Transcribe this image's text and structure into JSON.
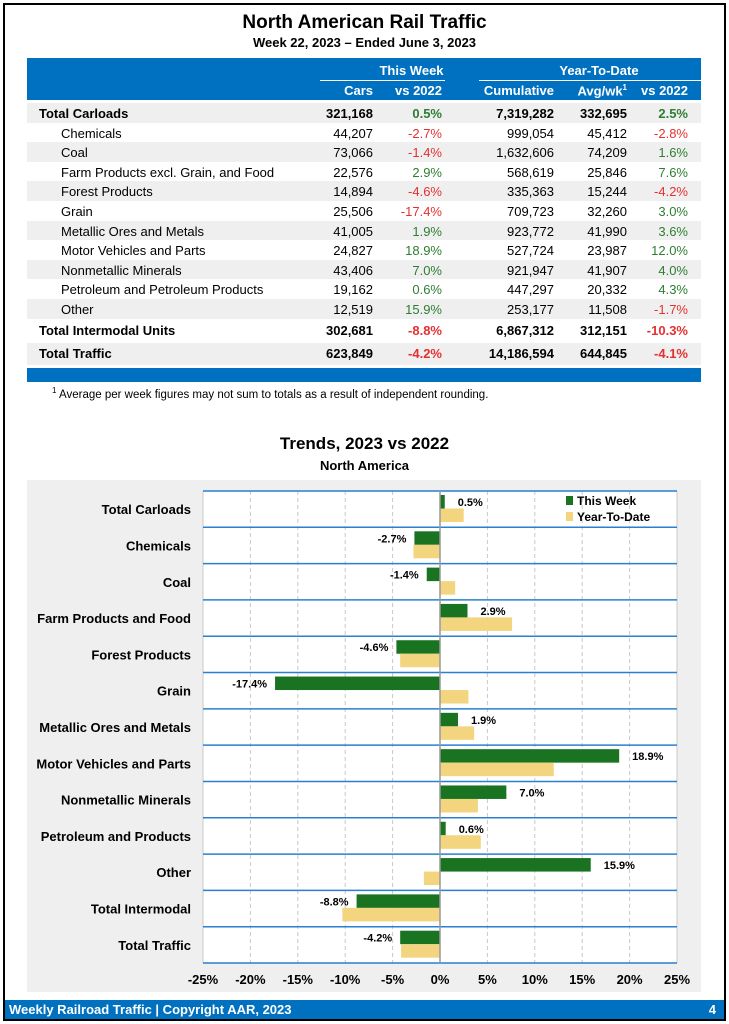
{
  "title": "North American Rail Traffic",
  "subtitle": "Week 22, 2023 – Ended June 3, 2023",
  "table": {
    "group_this_week": "This Week",
    "group_ytd": "Year-To-Date",
    "columns": [
      "Cars",
      "vs 2022",
      "Cumulative",
      "Avg/wk",
      "vs 2022"
    ],
    "avg_sup": "1",
    "rows": [
      {
        "label": "Total Carloads",
        "bold": true,
        "cars": "321,168",
        "vs": "0.5%",
        "cum": "7,319,282",
        "avg": "332,695",
        "ytd": "2.5%"
      },
      {
        "label": "Chemicals",
        "cars": "44,207",
        "vs": "-2.7%",
        "cum": "999,054",
        "avg": "45,412",
        "ytd": "-2.8%"
      },
      {
        "label": "Coal",
        "cars": "73,066",
        "vs": "-1.4%",
        "cum": "1,632,606",
        "avg": "74,209",
        "ytd": "1.6%"
      },
      {
        "label": "Farm Products excl. Grain, and Food",
        "cars": "22,576",
        "vs": "2.9%",
        "cum": "568,619",
        "avg": "25,846",
        "ytd": "7.6%"
      },
      {
        "label": "Forest Products",
        "cars": "14,894",
        "vs": "-4.6%",
        "cum": "335,363",
        "avg": "15,244",
        "ytd": "-4.2%"
      },
      {
        "label": "Grain",
        "cars": "25,506",
        "vs": "-17.4%",
        "cum": "709,723",
        "avg": "32,260",
        "ytd": "3.0%"
      },
      {
        "label": "Metallic Ores and Metals",
        "cars": "41,005",
        "vs": "1.9%",
        "cum": "923,772",
        "avg": "41,990",
        "ytd": "3.6%"
      },
      {
        "label": "Motor Vehicles and Parts",
        "cars": "24,827",
        "vs": "18.9%",
        "cum": "527,724",
        "avg": "23,987",
        "ytd": "12.0%"
      },
      {
        "label": "Nonmetallic Minerals",
        "cars": "43,406",
        "vs": "7.0%",
        "cum": "921,947",
        "avg": "41,907",
        "ytd": "4.0%"
      },
      {
        "label": "Petroleum and Petroleum Products",
        "cars": "19,162",
        "vs": "0.6%",
        "cum": "447,297",
        "avg": "20,332",
        "ytd": "4.3%"
      },
      {
        "label": "Other",
        "cars": "12,519",
        "vs": "15.9%",
        "cum": "253,177",
        "avg": "11,508",
        "ytd": "-1.7%"
      },
      {
        "label": "Total Intermodal Units",
        "bold": true,
        "cars": "302,681",
        "vs": "-8.8%",
        "cum": "6,867,312",
        "avg": "312,151",
        "ytd": "-10.3%"
      },
      {
        "label": "Total Traffic",
        "bold": true,
        "cars": "623,849",
        "vs": "-4.2%",
        "cum": "14,186,594",
        "avg": "644,845",
        "ytd": "-4.1%"
      }
    ]
  },
  "footnote": {
    "mark": "1",
    "text": "Average per week figures may not sum to totals as a result of independent rounding."
  },
  "chart_data": {
    "type": "bar",
    "orientation": "horizontal",
    "title": "Trends, 2023 vs 2022",
    "subtitle": "North America",
    "categories": [
      "Total Carloads",
      "Chemicals",
      "Coal",
      "Farm Products and Food",
      "Forest Products",
      "Grain",
      "Metallic Ores and Metals",
      "Motor Vehicles and Parts",
      "Nonmetallic Minerals",
      "Petroleum and Products",
      "Other",
      "Total Intermodal",
      "Total Traffic"
    ],
    "series": [
      {
        "name": "This Week",
        "color": "#1a7320",
        "values": [
          0.5,
          -2.7,
          -1.4,
          2.9,
          -4.6,
          -17.4,
          1.9,
          18.9,
          7.0,
          0.6,
          15.9,
          -8.8,
          -4.2
        ],
        "labels": [
          "0.5%",
          "-2.7%",
          "-1.4%",
          "2.9%",
          "-4.6%",
          "-17.4%",
          "1.9%",
          "18.9%",
          "7.0%",
          "0.6%",
          "15.9%",
          "-8.8%",
          "-4.2%"
        ]
      },
      {
        "name": "Year-To-Date",
        "color": "#f2d57e",
        "values": [
          2.5,
          -2.8,
          1.6,
          7.6,
          -4.2,
          3.0,
          3.6,
          12.0,
          4.0,
          4.3,
          -1.7,
          -10.3,
          -4.1
        ]
      }
    ],
    "xlim": [
      -25,
      25
    ],
    "xticks": [
      "-25%",
      "-20%",
      "-15%",
      "-10%",
      "-5%",
      "0%",
      "5%",
      "10%",
      "15%",
      "20%",
      "25%"
    ],
    "legend": "top-right",
    "grid": true
  },
  "footer": {
    "left": "Weekly Railroad Traffic | Copyright AAR, 2023",
    "page": "4"
  }
}
